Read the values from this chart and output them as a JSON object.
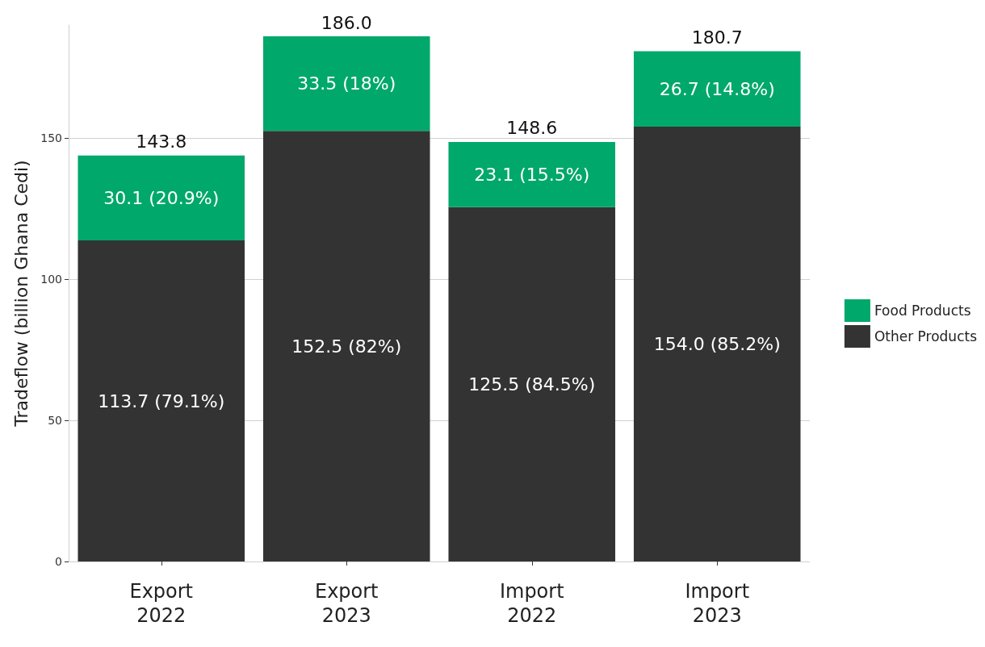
{
  "chart_data": {
    "type": "bar",
    "stacked": true,
    "ylabel": "Tradeflow (billion Ghana Cedi)",
    "categories": [
      "Export\n2022",
      "Export\n2023",
      "Import\n2022",
      "Import\n2023"
    ],
    "series": [
      {
        "name": "Other Products",
        "color": "#333333",
        "values": [
          113.7,
          152.5,
          125.5,
          154.0
        ],
        "value_labels": [
          "113.7 (79.1%)",
          "152.5 (82%)",
          "125.5 (84.5%)",
          "154.0 (85.2%)"
        ]
      },
      {
        "name": "Food Products",
        "color": "#00a86b",
        "values": [
          30.1,
          33.5,
          23.1,
          26.7
        ],
        "value_labels": [
          "30.1 (20.9%)",
          "33.5 (18%)",
          "23.1 (15.5%)",
          "26.7 (14.8%)"
        ]
      }
    ],
    "totals": [
      "143.8",
      "186.0",
      "148.6",
      "180.7"
    ],
    "ylim": [
      0,
      190
    ],
    "yticks": [
      0,
      50,
      100,
      150
    ],
    "grid": "y",
    "legend": "right"
  }
}
